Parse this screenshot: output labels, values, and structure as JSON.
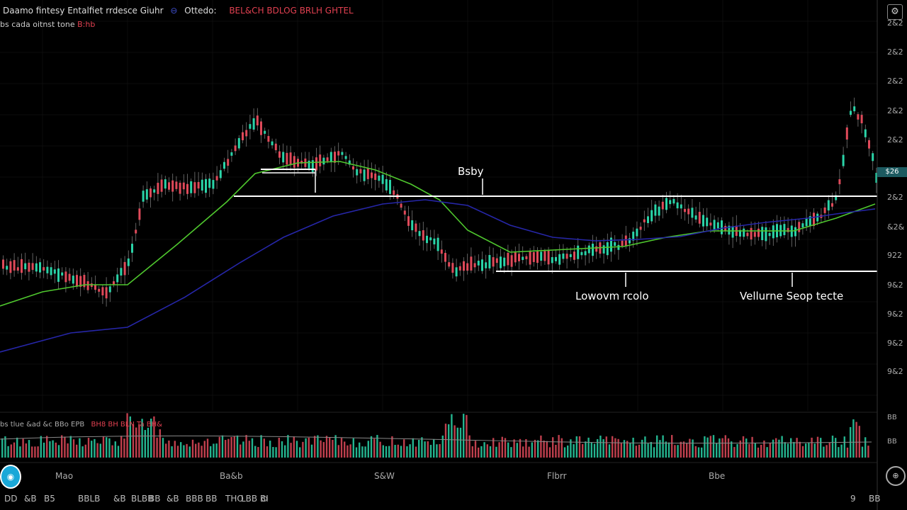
{
  "legend": {
    "symbol": "Daamo fintesy Entalfiet rrdesce Giuhr",
    "icon": "eye-icon",
    "field": "Ottedo:",
    "values": "BEL&CH   BDLOG   BRLH   GHTEL"
  },
  "subtitle": {
    "text": "bs cada oitnst tone",
    "value": "B:hb"
  },
  "price_axis": {
    "labels": [
      "2&2",
      "2&2",
      "2&2",
      "2&2",
      "2&2",
      "2&2",
      "2&2",
      "&2&",
      "922",
      "9&2",
      "9&2",
      "9&2",
      "9&2"
    ],
    "current_price": "$26"
  },
  "time_axis": {
    "labels": [
      "Mao",
      "Ba&b",
      "S&W",
      "Flbrr",
      "Bbe"
    ]
  },
  "annotations": {
    "top": "Bsby",
    "left_bottom": "Lowovm rcolo",
    "right_bottom": "Vellurne Seop tecte"
  },
  "volume_legend": {
    "text": "bs tlue &ad &c BBo   EPB",
    "value": "BH8 BH BLN Ta BH&"
  },
  "toolbar": {
    "items": [
      "DD",
      "&B",
      "B5",
      "BBLB",
      "&B",
      "BLBB",
      "BB",
      "&B",
      "BBB",
      "BB",
      "THO",
      "LBB BI"
    ],
    "right_items": [
      "9",
      "BB"
    ]
  },
  "colors": {
    "up": "#2ad4a8",
    "down": "#e04a5a",
    "ma_fast": "#4fc82e",
    "ma_slow": "#2626a8",
    "level": "#ffffff",
    "accent_badge": "#1c5a60"
  },
  "chart_data": {
    "type": "candlestick",
    "overlays": [
      {
        "style": "moving-average",
        "color": "#4fc82e",
        "points": [
          [
            0,
            432
          ],
          [
            60,
            412
          ],
          [
            120,
            402
          ],
          [
            180,
            402
          ],
          [
            250,
            345
          ],
          [
            320,
            285
          ],
          [
            360,
            245
          ],
          [
            420,
            230
          ],
          [
            480,
            228
          ],
          [
            530,
            240
          ],
          [
            580,
            260
          ],
          [
            620,
            282
          ],
          [
            660,
            325
          ],
          [
            720,
            356
          ],
          [
            800,
            352
          ],
          [
            880,
            348
          ],
          [
            940,
            335
          ],
          [
            1000,
            326
          ],
          [
            1060,
            326
          ],
          [
            1120,
            326
          ],
          [
            1180,
            308
          ],
          [
            1235,
            288
          ]
        ]
      },
      {
        "style": "moving-average",
        "color": "#2626a8",
        "points": [
          [
            0,
            497
          ],
          [
            100,
            470
          ],
          [
            180,
            462
          ],
          [
            260,
            420
          ],
          [
            340,
            370
          ],
          [
            400,
            335
          ],
          [
            470,
            305
          ],
          [
            540,
            288
          ],
          [
            600,
            282
          ],
          [
            660,
            290
          ],
          [
            720,
            318
          ],
          [
            780,
            335
          ],
          [
            840,
            340
          ],
          [
            900,
            338
          ],
          [
            960,
            334
          ],
          [
            1020,
            322
          ],
          [
            1080,
            314
          ],
          [
            1140,
            308
          ],
          [
            1180,
            302
          ],
          [
            1235,
            295
          ]
        ]
      }
    ],
    "levels": [
      {
        "price_y": 277,
        "from": 330,
        "to": 1238,
        "label": "Bsby"
      },
      {
        "price_y": 383,
        "from": 700,
        "to": 1238
      },
      {
        "price_y": 239,
        "from": 368,
        "to": 445
      }
    ],
    "volume_ma": true
  }
}
